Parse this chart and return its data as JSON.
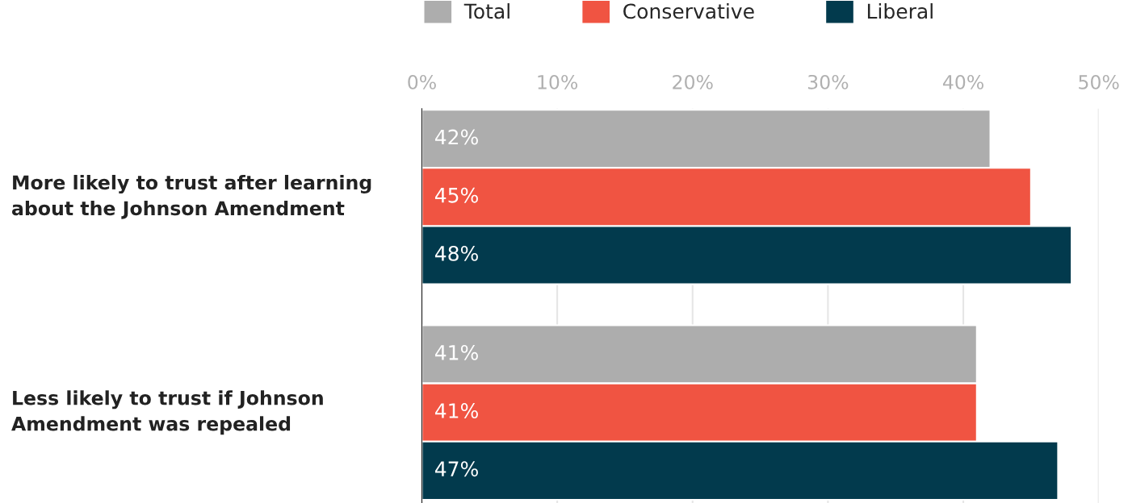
{
  "chart_data": {
    "type": "bar",
    "orientation": "horizontal",
    "categories": [
      "More likely to trust after learning about the Johnson Amendment",
      "Less likely to trust if Johnson Amendment was repealed"
    ],
    "series": [
      {
        "name": "Total",
        "color": "#adadad",
        "values": [
          42,
          41
        ],
        "value_labels": [
          "42%",
          "41%"
        ]
      },
      {
        "name": "Conservative",
        "color": "#f05442",
        "values": [
          45,
          41
        ],
        "value_labels": [
          "45%",
          "41%"
        ]
      },
      {
        "name": "Liberal",
        "color": "#023a4d",
        "values": [
          48,
          47
        ],
        "value_labels": [
          "48%",
          "47%"
        ]
      }
    ],
    "xlim": [
      0,
      50
    ],
    "xticks": [
      {
        "value": 0,
        "label": "0%"
      },
      {
        "value": 10,
        "label": "10%"
      },
      {
        "value": 20,
        "label": "20%"
      },
      {
        "value": 30,
        "label": "30%"
      },
      {
        "value": 40,
        "label": "40%"
      },
      {
        "value": 50,
        "label": "50%"
      }
    ],
    "grid": "x",
    "legend": "top"
  }
}
